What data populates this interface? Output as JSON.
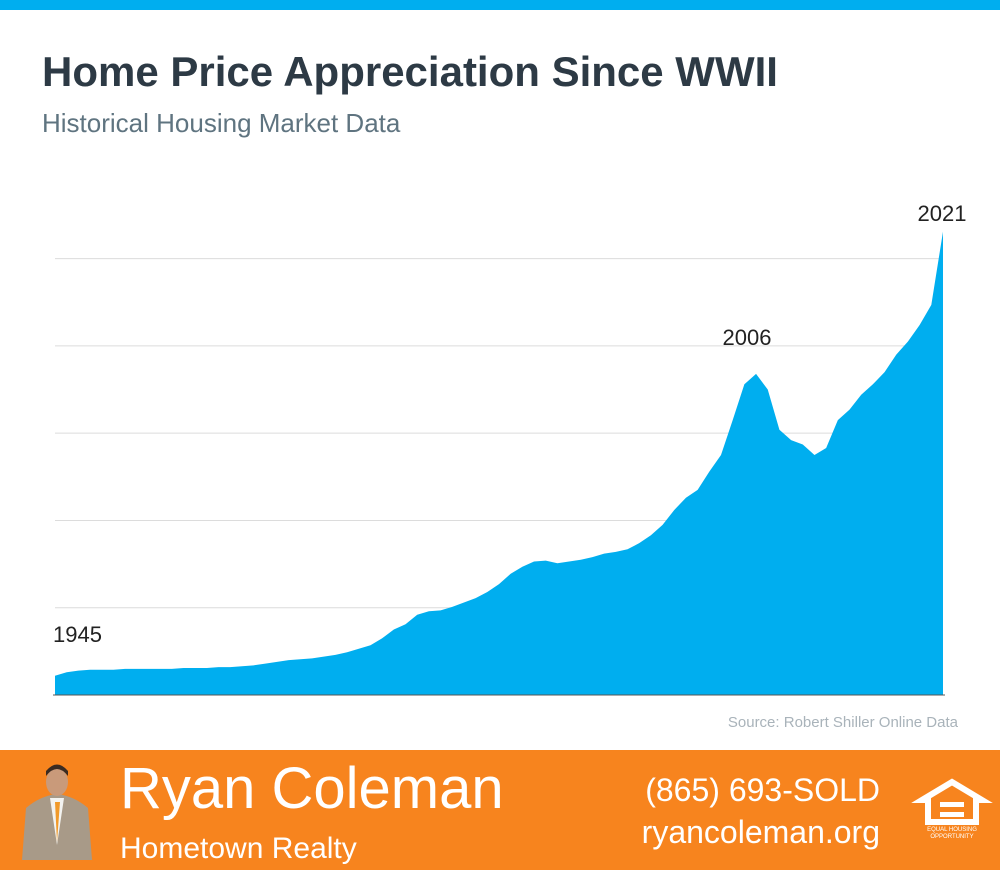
{
  "chart_data": {
    "type": "area",
    "title": "Home Price Appreciation Since WWII",
    "subtitle": "Historical Housing Market Data",
    "source": "Source: Robert Shiller Online Data",
    "x": [
      1945,
      1946,
      1947,
      1948,
      1949,
      1950,
      1951,
      1952,
      1953,
      1954,
      1955,
      1956,
      1957,
      1958,
      1959,
      1960,
      1961,
      1962,
      1963,
      1964,
      1965,
      1966,
      1967,
      1968,
      1969,
      1970,
      1971,
      1972,
      1973,
      1974,
      1975,
      1976,
      1977,
      1978,
      1979,
      1980,
      1981,
      1982,
      1983,
      1984,
      1985,
      1986,
      1987,
      1988,
      1989,
      1990,
      1991,
      1992,
      1993,
      1994,
      1995,
      1996,
      1997,
      1998,
      1999,
      2000,
      2001,
      2002,
      2003,
      2004,
      2005,
      2006,
      2007,
      2008,
      2009,
      2010,
      2011,
      2012,
      2013,
      2014,
      2015,
      2016,
      2017,
      2018,
      2019,
      2020,
      2021
    ],
    "values": [
      0.22,
      0.26,
      0.28,
      0.29,
      0.29,
      0.29,
      0.3,
      0.3,
      0.3,
      0.3,
      0.3,
      0.31,
      0.31,
      0.31,
      0.32,
      0.32,
      0.33,
      0.34,
      0.36,
      0.38,
      0.4,
      0.41,
      0.42,
      0.44,
      0.46,
      0.49,
      0.53,
      0.57,
      0.65,
      0.75,
      0.81,
      0.92,
      0.96,
      0.97,
      1.01,
      1.06,
      1.11,
      1.18,
      1.27,
      1.39,
      1.47,
      1.53,
      1.54,
      1.51,
      1.53,
      1.55,
      1.58,
      1.62,
      1.64,
      1.67,
      1.74,
      1.83,
      1.95,
      2.12,
      2.26,
      2.35,
      2.56,
      2.75,
      3.15,
      3.56,
      3.68,
      3.5,
      3.04,
      2.92,
      2.87,
      2.75,
      2.83,
      3.15,
      3.27,
      3.44,
      3.56,
      3.7,
      3.9,
      4.05,
      4.24,
      4.47,
      5.31
    ],
    "color": "#00aeef",
    "xlim": [
      1945,
      2021
    ],
    "ylim": [
      0,
      5.5
    ],
    "yticks": [
      1,
      2,
      3,
      4,
      5
    ],
    "grid": true
  },
  "footer": {
    "name": "Ryan Coleman",
    "company": "Hometown Realty",
    "phone": "(865) 693-SOLD",
    "website": "ryancoleman.org",
    "logo_text": [
      "EQUAL HOUSING",
      "OPPORTUNITY"
    ]
  }
}
